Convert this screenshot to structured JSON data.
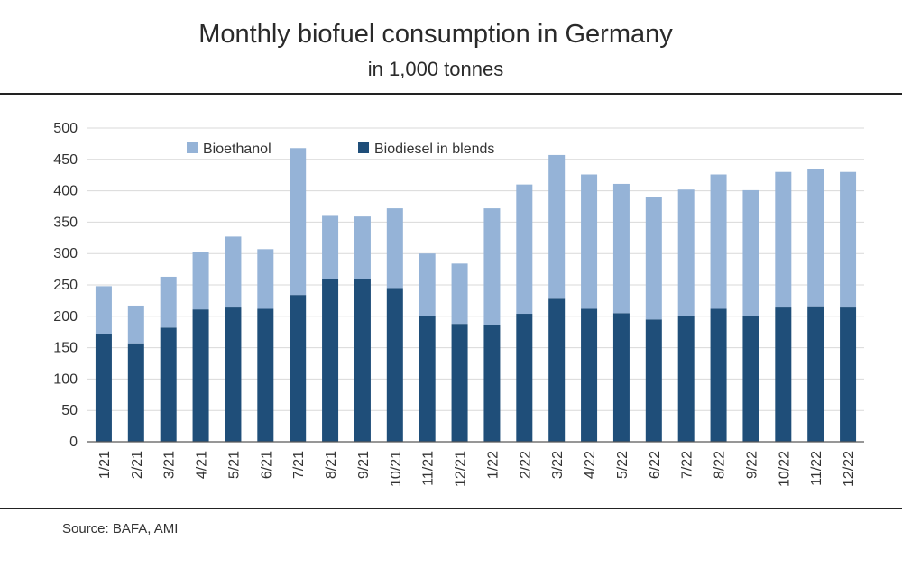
{
  "title": "Monthly biofuel consumption in Germany",
  "subtitle": "in 1,000 tonnes",
  "source": "Source: BAFA, AMI",
  "colors": {
    "bioethanol": "#95b3d7",
    "biodiesel": "#1f4e79",
    "grid": "#d9d9d9",
    "axis": "#595959"
  },
  "chart_data": {
    "type": "bar",
    "stacked": true,
    "categories": [
      "1/21",
      "2/21",
      "3/21",
      "4/21",
      "5/21",
      "6/21",
      "7/21",
      "8/21",
      "9/21",
      "10/21",
      "11/21",
      "12/21",
      "1/22",
      "2/22",
      "3/22",
      "4/22",
      "5/22",
      "6/22",
      "7/22",
      "8/22",
      "9/22",
      "10/22",
      "11/22",
      "12/22"
    ],
    "series": [
      {
        "name": "Biodiesel in blends",
        "values": [
          172,
          157,
          182,
          211,
          214,
          212,
          234,
          260,
          260,
          245,
          200,
          188,
          186,
          204,
          228,
          212,
          205,
          195,
          200,
          212,
          200,
          214,
          216,
          214
        ]
      },
      {
        "name": "Bioethanol",
        "values": [
          76,
          60,
          81,
          91,
          113,
          95,
          234,
          100,
          99,
          127,
          100,
          96,
          186,
          206,
          229,
          214,
          206,
          195,
          202,
          214,
          201,
          216,
          218,
          216
        ]
      }
    ],
    "ylim": [
      0,
      500
    ],
    "yticks": [
      0,
      50,
      100,
      150,
      200,
      250,
      300,
      350,
      400,
      450,
      500
    ],
    "legend": "top-left",
    "grid": true
  }
}
